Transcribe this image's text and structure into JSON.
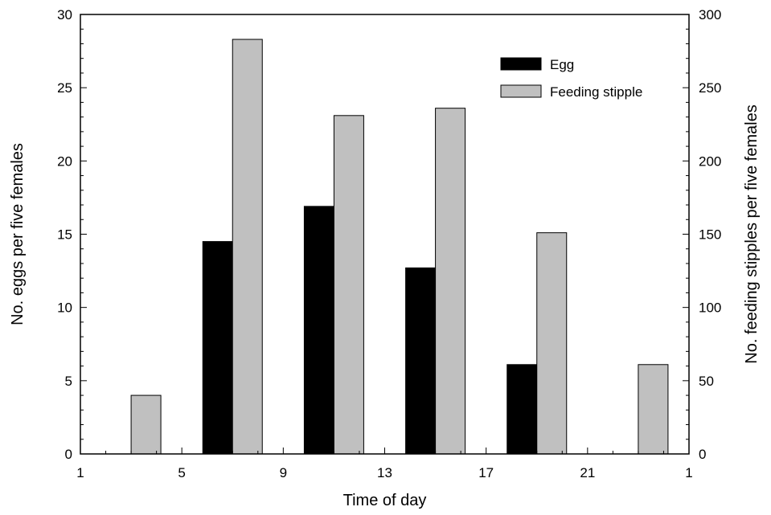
{
  "chart_data": {
    "type": "bar",
    "xlabel": "Time of day",
    "ylabel": "No. eggs per five females",
    "y2label": "No. feeding stipples per five females",
    "x_ticks": [
      "1",
      "5",
      "9",
      "13",
      "17",
      "21",
      "1"
    ],
    "ylim": [
      0,
      30
    ],
    "y_ticks": [
      "0",
      "5",
      "10",
      "15",
      "20",
      "25",
      "30"
    ],
    "y2lim": [
      0,
      300
    ],
    "y2_ticks": [
      "0",
      "50",
      "100",
      "150",
      "200",
      "250",
      "300"
    ],
    "categories": [
      "1-5",
      "5-9",
      "9-13",
      "13-17",
      "17-21",
      "21-1"
    ],
    "series": [
      {
        "name": "Egg",
        "axis": "left",
        "color": "#000000",
        "values": [
          0,
          14.5,
          16.9,
          12.7,
          6.1,
          0
        ]
      },
      {
        "name": "Feeding stipple",
        "axis": "right",
        "color": "#c0c0c0",
        "values": [
          40,
          283,
          231,
          236,
          151,
          61
        ]
      }
    ],
    "legend_position": "top-right",
    "grid": false
  }
}
